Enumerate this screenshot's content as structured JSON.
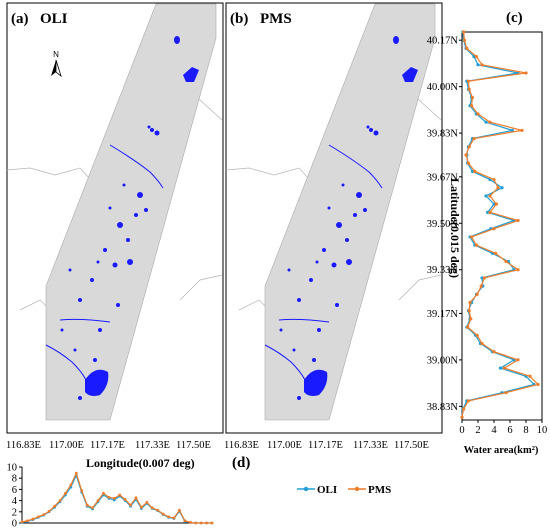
{
  "panels": {
    "a": {
      "label": "(a)",
      "title": "OLI"
    },
    "b": {
      "label": "(b)",
      "title": "PMS"
    },
    "c": {
      "label": "(c)"
    },
    "d": {
      "label": "(d)"
    }
  },
  "north_arrow": {
    "letter": "N"
  },
  "map_xticks": [
    "116.83E",
    "117.00E",
    "117.17E",
    "117.33E",
    "117.50E"
  ],
  "colors": {
    "water": "#1a1aff",
    "scene": "#d9d9d9",
    "border": "#b5b5b5",
    "oli": "#1f9fd6",
    "pms": "#f07c2a"
  },
  "chart_data": [
    {
      "type": "line",
      "id": "c",
      "orientation": "horizontal-values-vertical-latitude",
      "xlabel": "Water area(km²)",
      "ylabel": "Latitude(0.015 deg)",
      "xlim": [
        0,
        10
      ],
      "xticks": [
        "0",
        "2",
        "4",
        "6",
        "8",
        "10"
      ],
      "ylim": [
        38.78,
        40.2
      ],
      "yticks": [
        "40.17N",
        "40.00N",
        "39.83N",
        "39.67N",
        "39.50N",
        "39.33N",
        "39.17N",
        "39.00N",
        "38.83N"
      ],
      "y": [
        40.2,
        40.17,
        40.14,
        40.11,
        40.08,
        40.05,
        40.02,
        39.99,
        39.96,
        39.93,
        39.9,
        39.87,
        39.84,
        39.81,
        39.78,
        39.75,
        39.72,
        39.69,
        39.66,
        39.63,
        39.6,
        39.57,
        39.54,
        39.51,
        39.48,
        39.45,
        39.42,
        39.39,
        39.36,
        39.33,
        39.3,
        39.27,
        39.24,
        39.21,
        39.18,
        39.15,
        39.12,
        39.09,
        39.06,
        39.03,
        39.0,
        38.97,
        38.94,
        38.91,
        38.88,
        38.85,
        38.82,
        38.79
      ],
      "series": [
        {
          "name": "OLI",
          "values": [
            0.1,
            0.2,
            0.5,
            1.5,
            2.0,
            7.0,
            0.6,
            0.8,
            1.2,
            1.0,
            1.8,
            3.0,
            6.3,
            1.3,
            0.8,
            0.6,
            0.7,
            1.3,
            3.5,
            5.0,
            3.0,
            4.0,
            3.2,
            6.5,
            3.6,
            1.0,
            1.6,
            3.8,
            5.8,
            6.5,
            2.5,
            2.6,
            1.8,
            1.2,
            0.8,
            1.0,
            0.6,
            1.7,
            2.3,
            3.8,
            6.5,
            4.8,
            8.0,
            9.0,
            5.0,
            0.6,
            0.1,
            0.0
          ]
        },
        {
          "name": "PMS",
          "values": [
            0.2,
            0.3,
            0.6,
            1.8,
            2.5,
            8.0,
            0.8,
            0.9,
            1.3,
            1.2,
            2.0,
            3.5,
            7.5,
            1.5,
            0.9,
            0.5,
            0.8,
            1.6,
            4.0,
            4.5,
            3.5,
            4.3,
            3.5,
            7.0,
            4.0,
            1.2,
            1.8,
            4.2,
            5.5,
            7.0,
            2.8,
            2.4,
            1.9,
            1.0,
            0.9,
            1.1,
            0.7,
            1.9,
            2.5,
            4.0,
            7.0,
            5.3,
            8.5,
            9.5,
            5.5,
            0.8,
            0.2,
            0.0
          ]
        }
      ]
    },
    {
      "type": "line",
      "id": "d",
      "xlabel": "Longitude(0.007 deg)",
      "ylabel": "",
      "ylim": [
        0,
        10
      ],
      "yticks": [
        "0",
        "2",
        "4",
        "6",
        "8",
        "10"
      ],
      "x": [
        116.83,
        116.85,
        116.87,
        116.89,
        116.91,
        116.93,
        116.95,
        116.97,
        116.99,
        117.01,
        117.03,
        117.05,
        117.07,
        117.09,
        117.11,
        117.13,
        117.15,
        117.17,
        117.19,
        117.21,
        117.23,
        117.25,
        117.27,
        117.29,
        117.31,
        117.33,
        117.35,
        117.37,
        117.39,
        117.41,
        117.43,
        117.45,
        117.47,
        117.49,
        117.51,
        117.53
      ],
      "series": [
        {
          "name": "OLI",
          "values": [
            0.1,
            0.3,
            0.6,
            1.0,
            1.4,
            2.0,
            2.8,
            3.8,
            5.0,
            6.4,
            8.5,
            5.5,
            3.0,
            2.5,
            3.8,
            5.0,
            4.4,
            4.1,
            4.8,
            4.0,
            3.0,
            4.2,
            2.6,
            3.5,
            2.6,
            2.2,
            1.5,
            1.0,
            0.8,
            2.1,
            0.3,
            0.1,
            0.0,
            0.0,
            0.0,
            0.0
          ]
        },
        {
          "name": "PMS",
          "values": [
            0.2,
            0.4,
            0.7,
            1.1,
            1.5,
            2.1,
            3.0,
            4.0,
            5.3,
            6.8,
            8.9,
            5.8,
            3.2,
            2.7,
            4.0,
            5.3,
            4.6,
            4.4,
            5.0,
            4.2,
            3.2,
            4.5,
            2.8,
            3.7,
            2.7,
            2.3,
            1.6,
            1.1,
            0.9,
            2.3,
            0.4,
            0.1,
            0.0,
            0.0,
            0.0,
            0.0
          ]
        }
      ]
    }
  ],
  "legend": {
    "oli": "OLI",
    "pms": "PMS"
  }
}
